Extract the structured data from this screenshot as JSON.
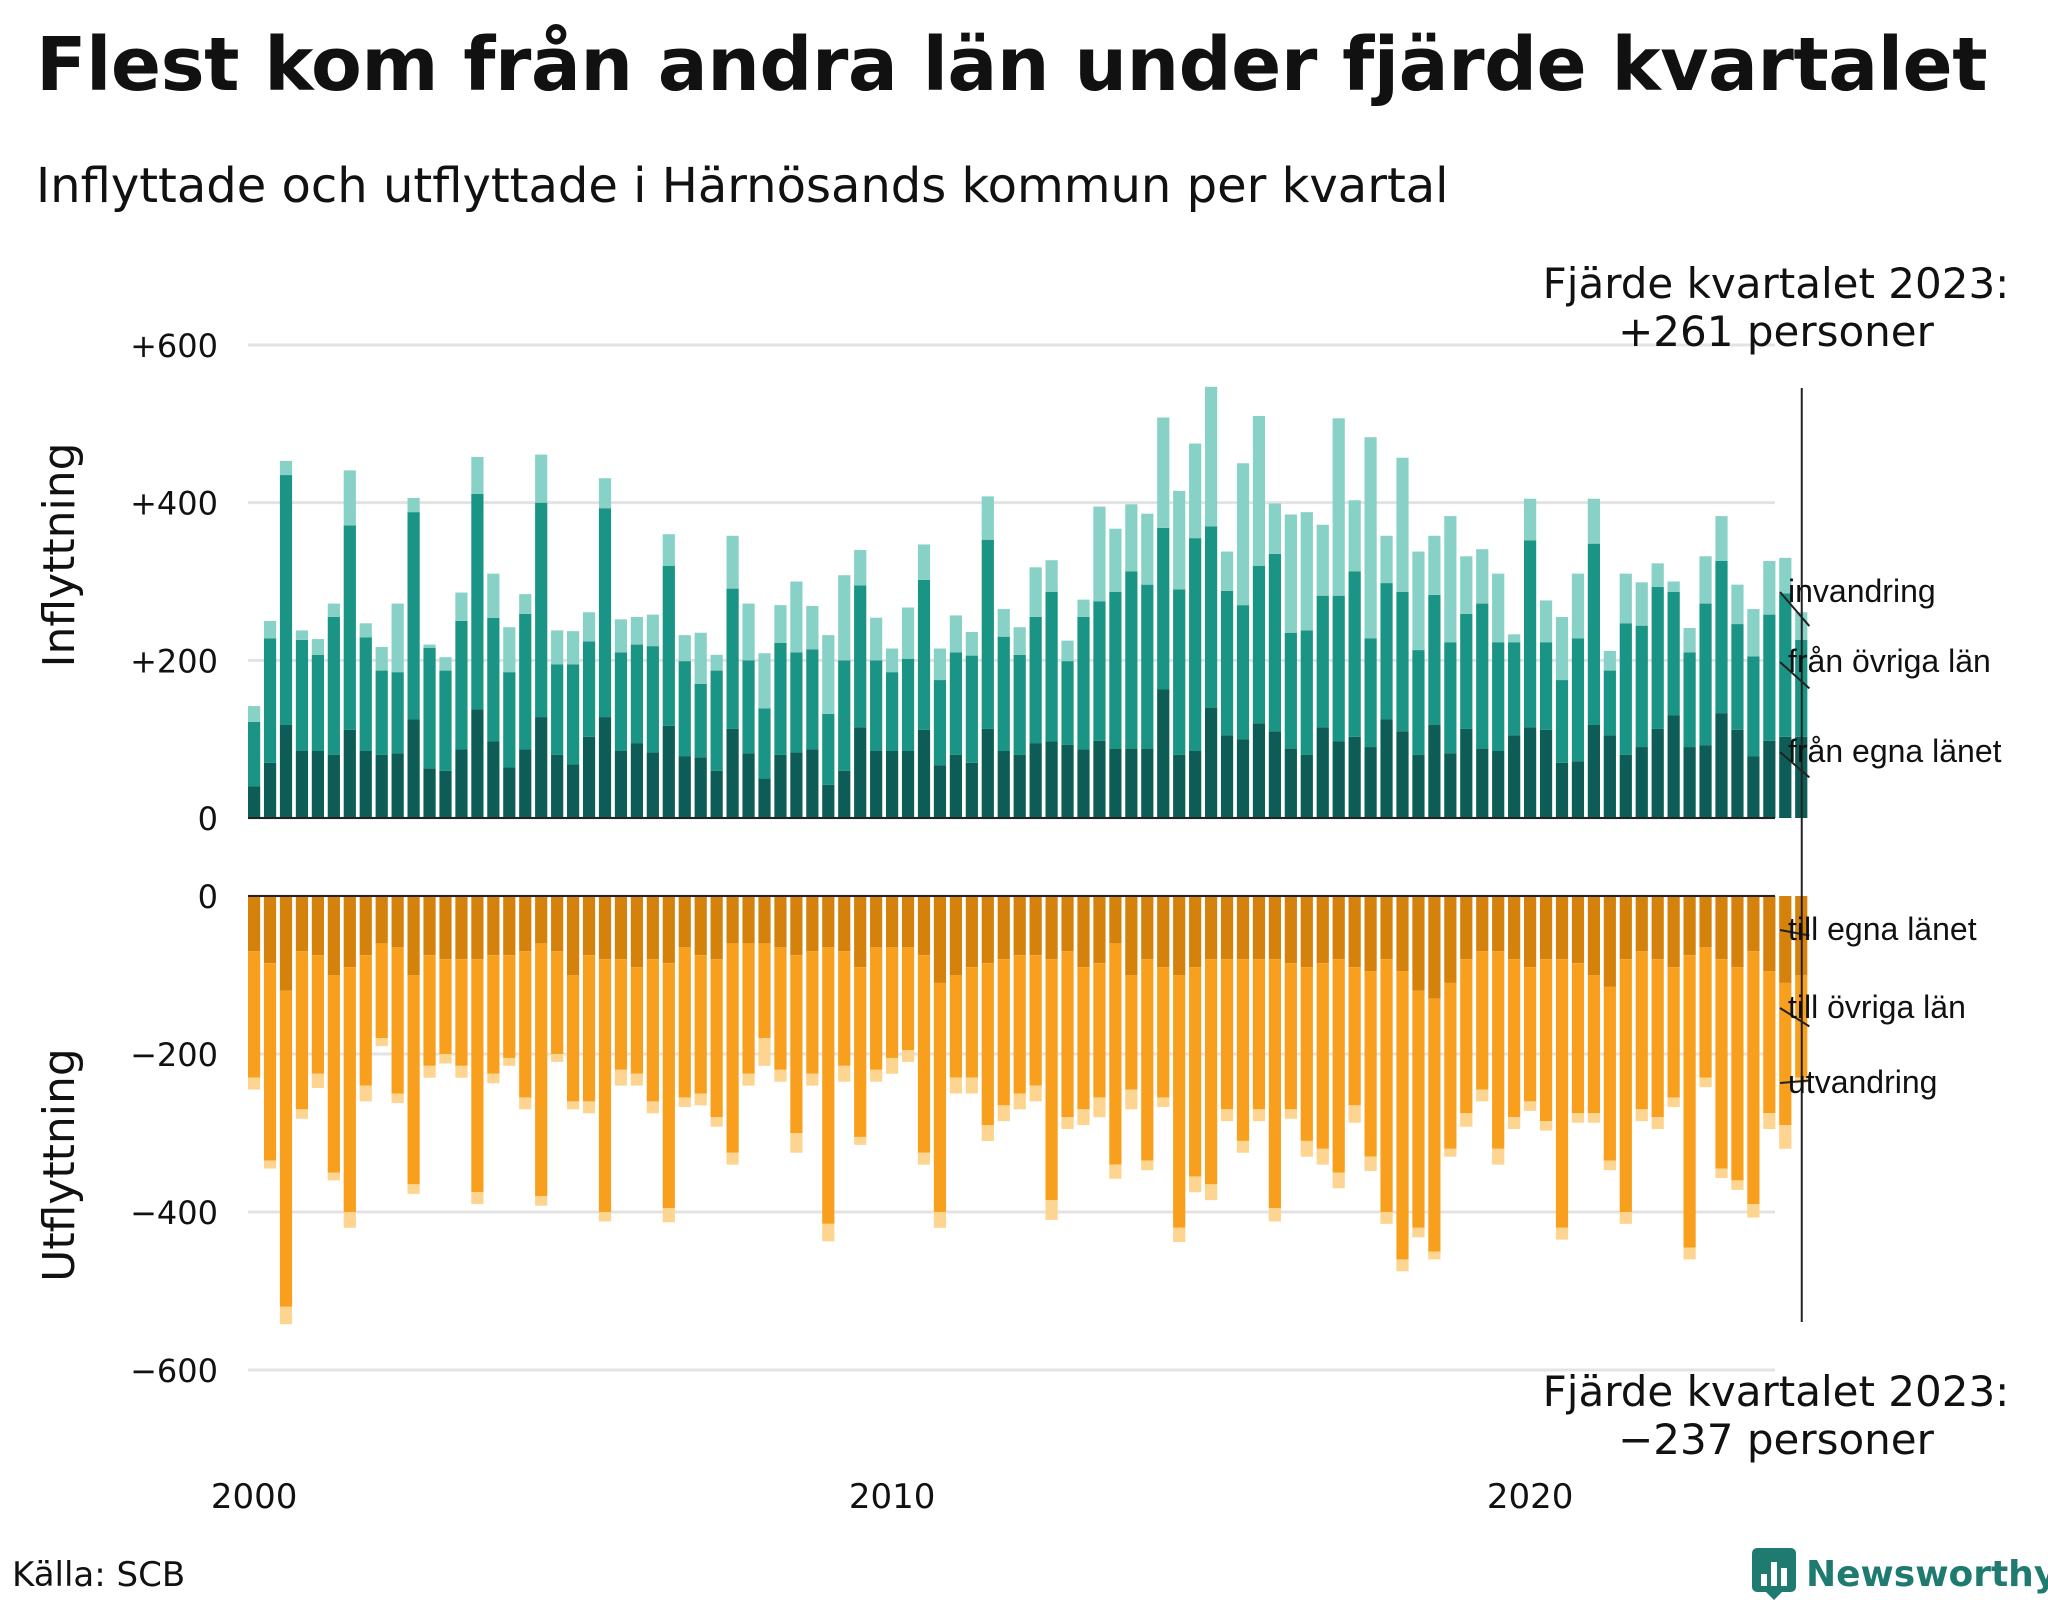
{
  "title": "Flest kom från andra län under fjärde kvartalet",
  "subtitle": "Inflyttade och utflyttade i Härnösands kommun per kvartal",
  "source": "Källa: SCB",
  "logo_text": "Newsworthy",
  "colors": {
    "in_egna": "#0d5c55",
    "in_ovriga": "#1a9485",
    "in_invandring": "#88d1c6",
    "out_egna": "#d4820c",
    "out_ovriga": "#f8a01d",
    "out_utvandring": "#fdd490",
    "grid": "#e3e3e3",
    "logo": "#1f7a6f"
  },
  "chart_data": {
    "type": "bar",
    "x_start": "2000 Q1",
    "x_ticks": [
      "2000",
      "2010",
      "2020"
    ],
    "grid": true,
    "top": {
      "ylabel": "Inflyttning",
      "ylim": [
        0,
        600
      ],
      "y_ticks": [
        {
          "v": 0,
          "label": "0"
        },
        {
          "v": 200,
          "label": "+200"
        },
        {
          "v": 400,
          "label": "+400"
        },
        {
          "v": 600,
          "label": "+600"
        }
      ],
      "annotation": [
        "Fjärde kvartalet 2023:",
        "+261 personer"
      ],
      "series": [
        {
          "name": "från egna länet",
          "values": [
            40,
            70,
            118,
            85,
            85,
            80,
            112,
            85,
            80,
            82,
            125,
            63,
            60,
            87,
            138,
            97,
            64,
            87,
            128,
            80,
            68,
            103,
            128,
            85,
            95,
            83,
            117,
            78,
            77,
            60,
            113,
            82,
            50,
            80,
            83,
            87,
            42,
            60,
            115,
            85,
            85,
            85,
            112,
            67,
            80,
            70,
            113,
            85,
            80,
            95,
            97,
            93,
            87,
            98,
            88,
            88,
            88,
            163,
            80,
            85,
            140,
            105,
            100,
            120,
            110,
            88,
            80,
            115,
            97,
            103,
            90,
            125,
            110,
            80,
            118,
            82,
            113,
            88,
            85,
            105,
            115,
            112,
            70,
            72,
            118,
            105,
            80,
            90,
            113,
            130,
            90,
            92,
            133,
            112,
            78,
            98,
            103,
            103
          ]
        },
        {
          "name": "från övriga län",
          "values": [
            82,
            158,
            317,
            141,
            122,
            175,
            259,
            144,
            107,
            103,
            263,
            153,
            127,
            163,
            273,
            157,
            121,
            172,
            272,
            115,
            127,
            121,
            265,
            125,
            125,
            135,
            203,
            121,
            93,
            127,
            178,
            118,
            89,
            142,
            127,
            127,
            90,
            140,
            180,
            115,
            100,
            117,
            190,
            108,
            130,
            136,
            240,
            145,
            127,
            160,
            190,
            106,
            168,
            177,
            199,
            225,
            208,
            205,
            210,
            270,
            230,
            183,
            170,
            200,
            225,
            147,
            158,
            167,
            185,
            210,
            138,
            173,
            177,
            133,
            165,
            141,
            146,
            184,
            138,
            118,
            237,
            111,
            105,
            156,
            230,
            82,
            167,
            154,
            180,
            157,
            120,
            180,
            193,
            134,
            127,
            160,
            182,
            123
          ]
        },
        {
          "name": "invandring",
          "values": [
            20,
            22,
            18,
            12,
            20,
            17,
            70,
            18,
            30,
            87,
            18,
            4,
            17,
            36,
            47,
            56,
            57,
            25,
            61,
            43,
            42,
            37,
            38,
            42,
            35,
            40,
            40,
            33,
            65,
            20,
            67,
            72,
            70,
            48,
            90,
            55,
            100,
            108,
            45,
            54,
            30,
            65,
            45,
            40,
            47,
            30,
            55,
            35,
            35,
            63,
            40,
            26,
            22,
            120,
            80,
            85,
            90,
            140,
            125,
            120,
            177,
            50,
            180,
            190,
            64,
            150,
            150,
            90,
            225,
            90,
            255,
            60,
            170,
            125,
            75,
            160,
            73,
            69,
            87,
            10,
            53,
            53,
            80,
            82,
            57,
            25,
            63,
            55,
            30,
            13,
            31,
            60,
            57,
            50,
            60,
            68,
            45,
            35
          ]
        }
      ]
    },
    "bottom": {
      "ylabel": "Utflyttning",
      "ylim": [
        -600,
        0
      ],
      "y_ticks": [
        {
          "v": 0,
          "label": "0"
        },
        {
          "v": -200,
          "label": "−200"
        },
        {
          "v": -400,
          "label": "−400"
        },
        {
          "v": -600,
          "label": "−600"
        }
      ],
      "annotation": [
        "Fjärde kvartalet 2023:",
        "−237 personer"
      ],
      "series": [
        {
          "name": "till egna länet",
          "values": [
            -70,
            -85,
            -120,
            -70,
            -75,
            -100,
            -90,
            -75,
            -60,
            -65,
            -100,
            -75,
            -80,
            -80,
            -80,
            -75,
            -75,
            -70,
            -60,
            -70,
            -100,
            -75,
            -80,
            -80,
            -90,
            -80,
            -85,
            -65,
            -75,
            -80,
            -60,
            -60,
            -60,
            -65,
            -75,
            -70,
            -65,
            -70,
            -90,
            -65,
            -65,
            -65,
            -75,
            -110,
            -100,
            -90,
            -85,
            -80,
            -75,
            -75,
            -80,
            -70,
            -90,
            -85,
            -60,
            -100,
            -80,
            -90,
            -100,
            -90,
            -80,
            -80,
            -80,
            -80,
            -80,
            -85,
            -90,
            -85,
            -80,
            -90,
            -95,
            -80,
            -95,
            -120,
            -130,
            -110,
            -80,
            -70,
            -70,
            -80,
            -90,
            -80,
            -80,
            -85,
            -100,
            -115,
            -80,
            -70,
            -80,
            -90,
            -75,
            -65,
            -80,
            -90,
            -70,
            -95,
            -110,
            -100
          ]
        },
        {
          "name": "till övriga län",
          "values": [
            -160,
            -250,
            -400,
            -200,
            -150,
            -250,
            -310,
            -165,
            -120,
            -185,
            -265,
            -140,
            -120,
            -135,
            -295,
            -150,
            -130,
            -185,
            -320,
            -130,
            -160,
            -185,
            -320,
            -140,
            -135,
            -180,
            -310,
            -190,
            -175,
            -200,
            -265,
            -165,
            -120,
            -155,
            -225,
            -155,
            -350,
            -145,
            -215,
            -155,
            -140,
            -130,
            -250,
            -290,
            -130,
            -140,
            -205,
            -185,
            -175,
            -165,
            -305,
            -210,
            -180,
            -170,
            -280,
            -145,
            -255,
            -165,
            -320,
            -265,
            -285,
            -190,
            -230,
            -190,
            -315,
            -185,
            -220,
            -235,
            -270,
            -175,
            -235,
            -320,
            -365,
            -300,
            -320,
            -210,
            -195,
            -175,
            -250,
            -200,
            -170,
            -205,
            -340,
            -190,
            -175,
            -220,
            -320,
            -200,
            -200,
            -165,
            -370,
            -165,
            -265,
            -270,
            -320,
            -180,
            -180,
            -130
          ]
        },
        {
          "name": "utvandring",
          "values": [
            -15,
            -10,
            -22,
            -12,
            -18,
            -10,
            -20,
            -20,
            -10,
            -12,
            -12,
            -15,
            -12,
            -15,
            -15,
            -12,
            -10,
            -15,
            -12,
            -10,
            -10,
            -15,
            -12,
            -20,
            -15,
            -15,
            -18,
            -12,
            -15,
            -12,
            -15,
            -15,
            -35,
            -15,
            -25,
            -15,
            -22,
            -20,
            -10,
            -15,
            -20,
            -15,
            -15,
            -20,
            -20,
            -20,
            -20,
            -20,
            -20,
            -20,
            -25,
            -15,
            -20,
            -25,
            -18,
            -25,
            -12,
            -12,
            -18,
            -20,
            -20,
            -15,
            -15,
            -15,
            -17,
            -12,
            -20,
            -20,
            -20,
            -22,
            -18,
            -15,
            -15,
            -12,
            -10,
            -10,
            -17,
            -15,
            -20,
            -15,
            -12,
            -12,
            -15,
            -12,
            -12,
            -12,
            -15,
            -15,
            -15,
            -12,
            -15,
            -12,
            -12,
            -12,
            -17,
            -20,
            -30,
            -7
          ]
        }
      ]
    }
  }
}
